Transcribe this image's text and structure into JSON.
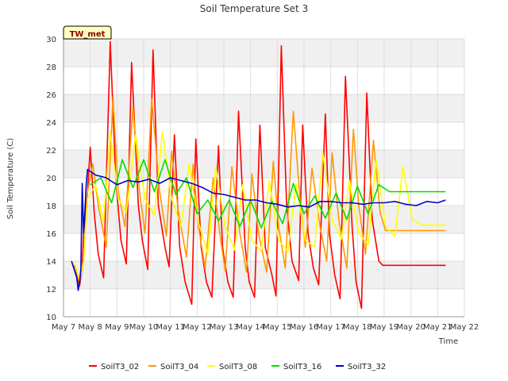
{
  "chart_data": {
    "type": "line",
    "title": "Soil Temperature Set 3",
    "xlabel": "Time",
    "ylabel": "Soil Temperature (C)",
    "badge": "TW_met",
    "ylim": [
      10,
      30
    ],
    "xlim": [
      0,
      15
    ],
    "yticks": [
      10,
      12,
      14,
      16,
      18,
      20,
      22,
      24,
      26,
      28,
      30
    ],
    "xtick_labels": [
      "May 7",
      "May 8",
      "May 9",
      "May 10",
      "May 11",
      "May 12",
      "May 13",
      "May 14",
      "May 15",
      "May 16",
      "May 17",
      "May 18",
      "May 19",
      "May 20",
      "May 21",
      "May 22"
    ],
    "grid": true,
    "legend_position": "bottom",
    "x_note": "x values are days since May 7 00:00",
    "series": [
      {
        "name": "SoilT3_02",
        "color": "#ff0000",
        "x": [
          0.3,
          0.45,
          0.6,
          0.7,
          0.75,
          0.9,
          1.0,
          1.15,
          1.3,
          1.5,
          1.75,
          1.95,
          2.15,
          2.35,
          2.55,
          2.8,
          2.95,
          3.15,
          3.35,
          3.55,
          3.8,
          3.95,
          4.15,
          4.35,
          4.55,
          4.8,
          4.95,
          5.15,
          5.35,
          5.55,
          5.8,
          5.95,
          6.15,
          6.35,
          6.55,
          6.8,
          6.95,
          7.15,
          7.35,
          7.55,
          7.8,
          7.95,
          8.15,
          8.35,
          8.55,
          8.8,
          8.95,
          9.15,
          9.35,
          9.55,
          9.8,
          9.95,
          10.15,
          10.35,
          10.55,
          10.8,
          10.95,
          11.15,
          11.35,
          11.55,
          11.8,
          11.95,
          12.15,
          12.35,
          12.55,
          12.8,
          12.95,
          13.15,
          13.35,
          13.55,
          13.8,
          13.95,
          14.15,
          14.3
        ],
        "values": [
          14.0,
          13.5,
          12.2,
          13.5,
          16.0,
          19.0,
          22.2,
          17.5,
          14.5,
          12.8,
          29.8,
          20.0,
          15.5,
          13.8,
          28.3,
          18.0,
          15.5,
          13.4,
          29.2,
          18.0,
          15.0,
          13.6,
          23.1,
          15.0,
          12.5,
          10.9,
          22.8,
          15.0,
          12.5,
          11.4,
          22.3,
          15.0,
          12.5,
          11.4,
          24.8,
          15.0,
          12.5,
          11.4,
          23.8,
          15.0,
          13.0,
          11.5,
          29.5,
          18.0,
          14.0,
          12.6,
          23.8,
          16.0,
          13.5,
          12.3,
          24.6,
          16.0,
          13.0,
          11.3,
          27.3,
          16.5,
          12.5,
          10.6,
          26.1,
          17.0,
          14.0,
          13.7,
          13.7,
          13.7,
          13.7,
          13.7,
          13.7,
          13.7,
          13.7,
          13.7,
          13.7,
          13.7,
          13.7,
          13.7
        ]
      },
      {
        "name": "SoilT3_04",
        "color": "#ff9900",
        "x": [
          0.3,
          0.45,
          0.6,
          0.75,
          0.9,
          1.1,
          1.3,
          1.6,
          1.85,
          2.05,
          2.3,
          2.6,
          2.85,
          3.05,
          3.3,
          3.6,
          3.85,
          4.05,
          4.3,
          4.6,
          4.85,
          5.05,
          5.3,
          5.6,
          5.85,
          6.05,
          6.3,
          6.6,
          6.85,
          7.05,
          7.3,
          7.6,
          7.85,
          8.05,
          8.3,
          8.6,
          8.85,
          9.05,
          9.3,
          9.6,
          9.85,
          10.05,
          10.3,
          10.6,
          10.85,
          11.05,
          11.3,
          11.6,
          11.85,
          12.05,
          12.3,
          12.6,
          12.85,
          13.05,
          13.3,
          13.6,
          13.85,
          14.05,
          14.3
        ],
        "values": [
          14.0,
          13.6,
          12.5,
          14.0,
          19.0,
          21.0,
          18.0,
          15.0,
          25.8,
          19.0,
          16.5,
          25.1,
          19.0,
          16.0,
          25.7,
          19.0,
          15.8,
          21.9,
          17.5,
          14.3,
          21.0,
          16.5,
          13.5,
          20.0,
          16.0,
          13.3,
          20.8,
          16.0,
          13.2,
          20.3,
          16.0,
          13.2,
          21.2,
          16.5,
          13.5,
          24.8,
          18.5,
          15.0,
          20.7,
          16.5,
          14.0,
          21.8,
          17.0,
          13.5,
          23.5,
          18.0,
          14.5,
          22.7,
          17.5,
          16.2,
          16.2,
          16.2,
          16.2,
          16.2,
          16.2,
          16.2,
          16.2,
          16.2,
          16.2
        ]
      },
      {
        "name": "SoilT3_08",
        "color": "#ffff00",
        "x": [
          0.3,
          0.45,
          0.6,
          0.75,
          0.9,
          1.2,
          1.5,
          1.75,
          2.05,
          2.35,
          2.7,
          3.05,
          3.4,
          3.7,
          4.05,
          4.4,
          4.7,
          5.05,
          5.4,
          5.7,
          6.05,
          6.4,
          6.7,
          7.05,
          7.4,
          7.7,
          8.05,
          8.4,
          8.7,
          9.05,
          9.4,
          9.7,
          10.05,
          10.4,
          10.7,
          11.05,
          11.4,
          11.7,
          12.05,
          12.4,
          12.7,
          13.05,
          13.4,
          13.7,
          14.05,
          14.3
        ],
        "values": [
          14.0,
          13.6,
          12.6,
          14.0,
          18.5,
          19.5,
          16.8,
          23.3,
          18.5,
          17.5,
          23.1,
          18.5,
          17.3,
          23.3,
          18.5,
          16.5,
          21.0,
          16.8,
          14.5,
          20.8,
          16.5,
          14.8,
          19.5,
          15.5,
          14.7,
          19.8,
          15.5,
          14.7,
          19.6,
          15.5,
          15.0,
          21.8,
          17.0,
          15.6,
          19.8,
          16.0,
          15.2,
          21.3,
          16.5,
          15.8,
          20.8,
          17.0,
          16.6,
          16.6,
          16.6,
          16.6
        ]
      },
      {
        "name": "SoilT3_16",
        "color": "#00dd00",
        "x": [
          1.0,
          1.4,
          1.8,
          2.2,
          2.6,
          3.0,
          3.4,
          3.8,
          4.2,
          4.6,
          5.0,
          5.4,
          5.8,
          6.2,
          6.6,
          7.0,
          7.4,
          7.8,
          8.2,
          8.6,
          9.0,
          9.4,
          9.8,
          10.2,
          10.6,
          11.0,
          11.4,
          11.8,
          12.2,
          12.6,
          13.0,
          13.4,
          13.8,
          14.2,
          14.3
        ],
        "values": [
          19.5,
          20.0,
          18.2,
          21.3,
          19.3,
          21.3,
          19.0,
          21.3,
          18.8,
          20.0,
          17.4,
          18.4,
          16.9,
          18.4,
          16.5,
          18.4,
          16.4,
          18.3,
          16.7,
          19.6,
          17.4,
          18.7,
          17.1,
          18.9,
          17.0,
          19.4,
          17.4,
          19.5,
          19.0,
          19.0,
          19.0,
          19.0,
          19.0,
          19.0,
          19.0
        ]
      },
      {
        "name": "SoilT3_32",
        "color": "#0000cc",
        "x": [
          0.3,
          0.4,
          0.5,
          0.55,
          0.6,
          0.65,
          0.7,
          0.75,
          0.8,
          0.85,
          0.9,
          1.2,
          1.6,
          2.0,
          2.4,
          2.8,
          3.2,
          3.6,
          4.0,
          4.4,
          4.8,
          5.2,
          5.6,
          6.0,
          6.4,
          6.8,
          7.2,
          7.6,
          8.0,
          8.4,
          8.8,
          9.2,
          9.6,
          10.0,
          10.4,
          10.8,
          11.2,
          11.6,
          12.0,
          12.4,
          12.8,
          13.2,
          13.6,
          14.0,
          14.3
        ],
        "values": [
          14.0,
          13.4,
          12.8,
          11.9,
          12.5,
          13.4,
          19.6,
          16.0,
          17.5,
          19.5,
          20.6,
          20.2,
          20.0,
          19.5,
          19.8,
          19.7,
          19.9,
          19.6,
          20.0,
          19.8,
          19.6,
          19.3,
          18.9,
          18.8,
          18.6,
          18.4,
          18.4,
          18.2,
          18.1,
          17.9,
          18.0,
          17.9,
          18.3,
          18.3,
          18.2,
          18.2,
          18.1,
          18.2,
          18.2,
          18.3,
          18.1,
          18.0,
          18.3,
          18.2,
          18.4
        ]
      }
    ]
  }
}
